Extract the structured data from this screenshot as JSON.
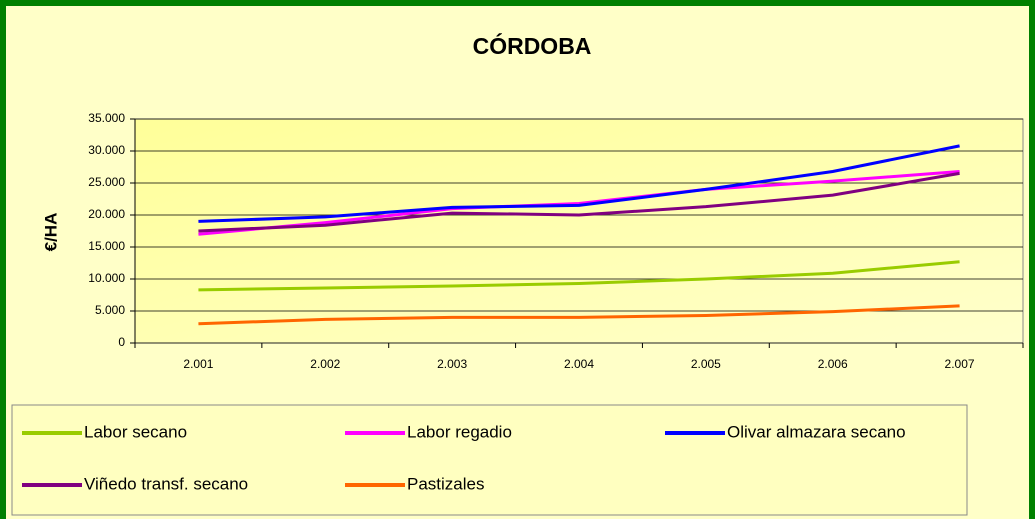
{
  "chart_data": {
    "type": "line",
    "title": "CÓRDOBA",
    "y_label": "€/HA",
    "categories": [
      "2.001",
      "2.002",
      "2.003",
      "2.004",
      "2.005",
      "2.006",
      "2.007"
    ],
    "series": [
      {
        "name": "Labor secano",
        "color": "#99cc00",
        "values": [
          8300,
          8600,
          8900,
          9300,
          10000,
          10900,
          12700
        ]
      },
      {
        "name": "Labor regadio",
        "color": "#ff00ff",
        "values": [
          17000,
          18800,
          21000,
          21800,
          24000,
          25300,
          26800
        ]
      },
      {
        "name": "Olivar almazara secano",
        "color": "#0000ff",
        "values": [
          19000,
          19700,
          21200,
          21500,
          24000,
          26800,
          30800
        ]
      },
      {
        "name": "Viñedo transf. secano",
        "color": "#800080",
        "values": [
          17500,
          18400,
          20300,
          20000,
          21300,
          23100,
          26500
        ]
      },
      {
        "name": "Pastizales",
        "color": "#ff6600",
        "values": [
          3000,
          3700,
          4000,
          4000,
          4300,
          4900,
          5800
        ]
      }
    ],
    "ylim": [
      0,
      35000
    ],
    "yticks": [
      0,
      {
        "value": 5000,
        "label": "5.000"
      },
      {
        "value": 10000,
        "label": "10.000"
      },
      {
        "value": 15000,
        "label": "15.000"
      },
      {
        "value": 20000,
        "label": "20.000"
      },
      {
        "value": 25000,
        "label": "25.000"
      },
      {
        "value": 30000,
        "label": "30.000"
      },
      {
        "value": 35000,
        "label": "35.000"
      }
    ],
    "grid": true,
    "legend": "bottom"
  }
}
